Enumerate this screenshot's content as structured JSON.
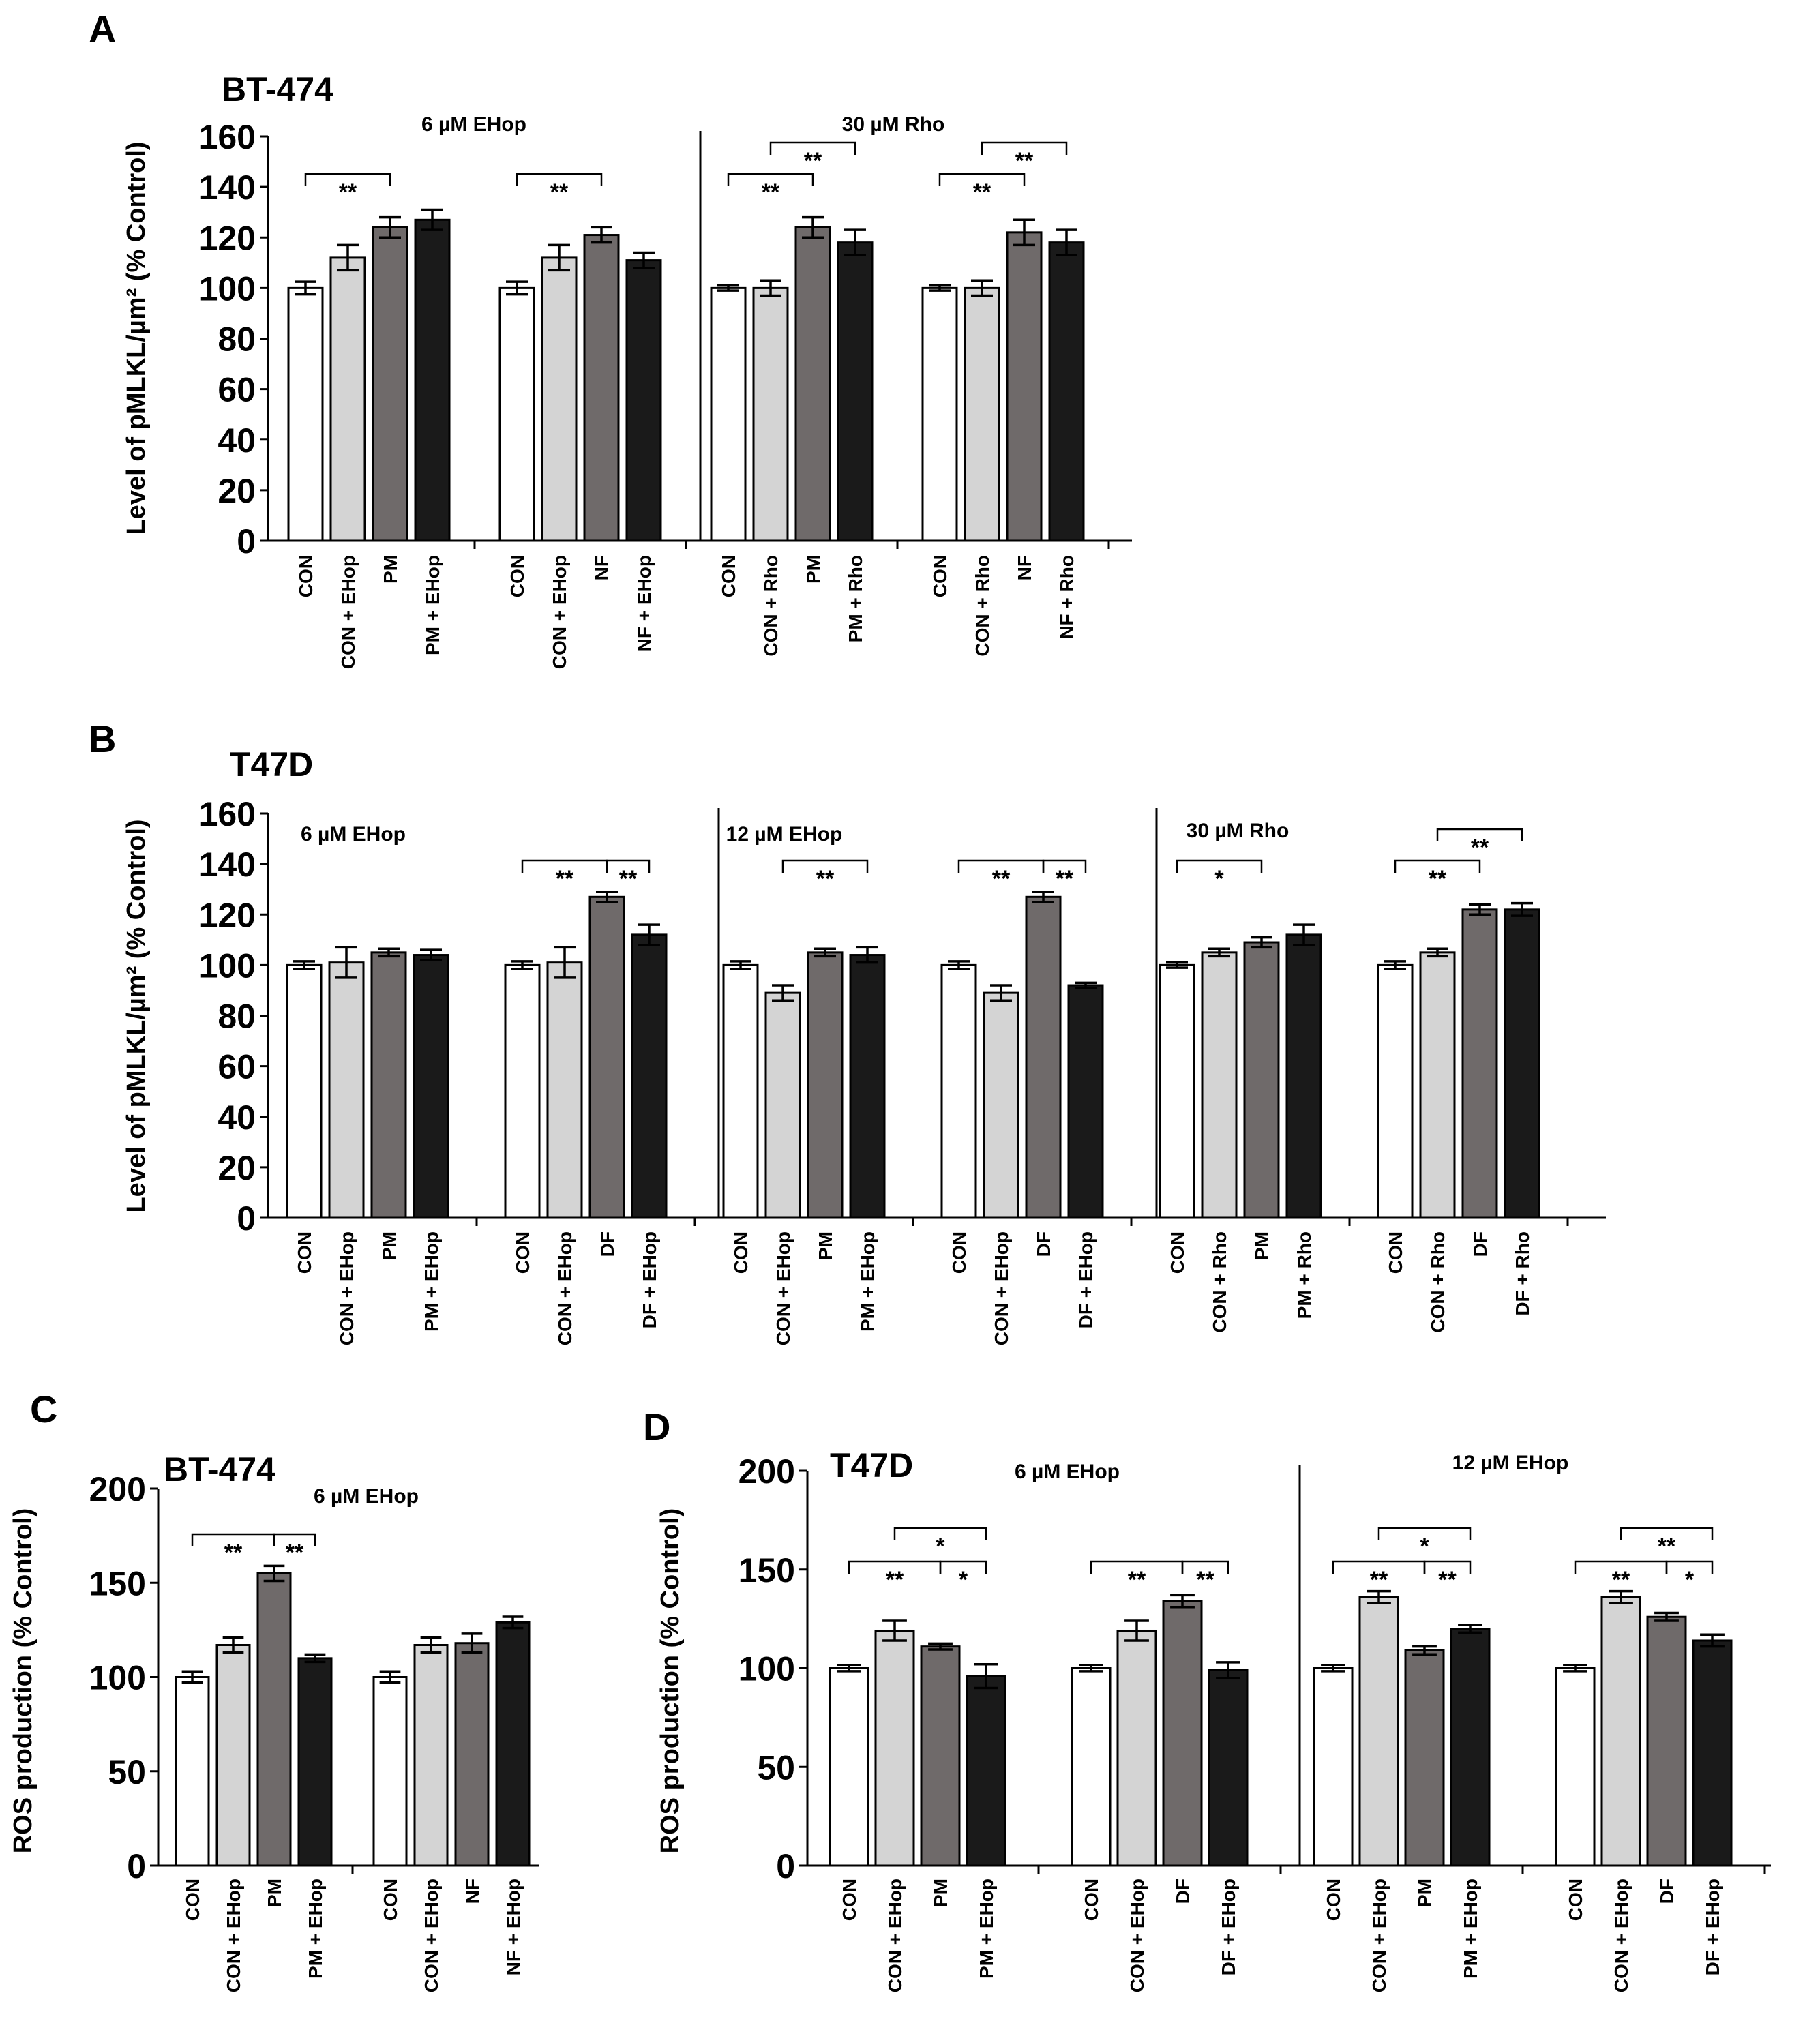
{
  "colors": {
    "bar": [
      "#ffffff",
      "#d4d4d4",
      "#6f6a6a",
      "#1a1a1a"
    ],
    "stroke": "#000000"
  },
  "chart_data": [
    {
      "id": "A",
      "type": "bar",
      "panel_label": "A",
      "title": "BT-474",
      "ylabel": "Level of pMLKL/µm² (% Control)",
      "ylim": [
        0,
        160
      ],
      "yticks": [
        0,
        20,
        40,
        60,
        80,
        100,
        120,
        140,
        160
      ],
      "sections": [
        {
          "label": "6 µM EHop",
          "groups": [
            0,
            1
          ]
        },
        {
          "label": "30 µM Rho",
          "groups": [
            2,
            3
          ]
        }
      ],
      "groups": [
        {
          "bars": [
            {
              "label": "CON",
              "value": 100,
              "err": 2.5
            },
            {
              "label": "CON + EHop",
              "value": 112,
              "err": 5
            },
            {
              "label": "PM",
              "value": 124,
              "err": 4
            },
            {
              "label": "PM + EHop",
              "value": 127,
              "err": 4
            }
          ],
          "sig": [
            {
              "from": 0,
              "to": 2,
              "text": "**",
              "level": 0
            }
          ]
        },
        {
          "bars": [
            {
              "label": "CON",
              "value": 100,
              "err": 2.5
            },
            {
              "label": "CON + EHop",
              "value": 112,
              "err": 5
            },
            {
              "label": "NF",
              "value": 121,
              "err": 3
            },
            {
              "label": "NF + EHop",
              "value": 111,
              "err": 3
            }
          ],
          "sig": [
            {
              "from": 0,
              "to": 2,
              "text": "**",
              "level": 0
            }
          ]
        },
        {
          "bars": [
            {
              "label": "CON",
              "value": 100,
              "err": 1
            },
            {
              "label": "CON + Rho",
              "value": 100,
              "err": 3
            },
            {
              "label": "PM",
              "value": 124,
              "err": 4
            },
            {
              "label": "PM + Rho",
              "value": 118,
              "err": 5
            }
          ],
          "sig": [
            {
              "from": 0,
              "to": 2,
              "text": "**",
              "level": 0
            },
            {
              "from": 1,
              "to": 3,
              "text": "**",
              "level": 1
            }
          ]
        },
        {
          "bars": [
            {
              "label": "CON",
              "value": 100,
              "err": 1
            },
            {
              "label": "CON + Rho",
              "value": 100,
              "err": 3
            },
            {
              "label": "NF",
              "value": 122,
              "err": 5
            },
            {
              "label": "NF + Rho",
              "value": 118,
              "err": 5
            }
          ],
          "sig": [
            {
              "from": 0,
              "to": 2,
              "text": "**",
              "level": 0
            },
            {
              "from": 1,
              "to": 3,
              "text": "**",
              "level": 1
            }
          ]
        }
      ]
    },
    {
      "id": "B",
      "type": "bar",
      "panel_label": "B",
      "title": "T47D",
      "ylabel": "Level of pMLKL/µm² (% Control)",
      "ylim": [
        0,
        160
      ],
      "yticks": [
        0,
        20,
        40,
        60,
        80,
        100,
        120,
        140,
        160
      ],
      "sections": [
        {
          "label": "6 µM EHop",
          "groups": [
            0,
            1
          ]
        },
        {
          "label": "12 µM EHop",
          "groups": [
            2,
            3
          ]
        },
        {
          "label": "30 µM Rho",
          "groups": [
            4,
            5
          ]
        }
      ],
      "groups": [
        {
          "bars": [
            {
              "label": "CON",
              "value": 100,
              "err": 1.5
            },
            {
              "label": "CON + EHop",
              "value": 101,
              "err": 6
            },
            {
              "label": "PM",
              "value": 105,
              "err": 1.5
            },
            {
              "label": "PM + EHop",
              "value": 104,
              "err": 2
            }
          ],
          "sig": []
        },
        {
          "bars": [
            {
              "label": "CON",
              "value": 100,
              "err": 1.5
            },
            {
              "label": "CON + EHop",
              "value": 101,
              "err": 6
            },
            {
              "label": "DF",
              "value": 127,
              "err": 2
            },
            {
              "label": "DF + EHop",
              "value": 112,
              "err": 4
            }
          ],
          "sig": [
            {
              "from": 0,
              "to": 2,
              "text": "**",
              "level": 0
            },
            {
              "from": 2,
              "to": 3,
              "text": "**",
              "level": 0
            }
          ]
        },
        {
          "bars": [
            {
              "label": "CON",
              "value": 100,
              "err": 1.5
            },
            {
              "label": "CON + EHop",
              "value": 89,
              "err": 3
            },
            {
              "label": "PM",
              "value": 105,
              "err": 1.5
            },
            {
              "label": "PM + EHop",
              "value": 104,
              "err": 3
            }
          ],
          "sig": [
            {
              "from": 1,
              "to": 3,
              "text": "**",
              "level": 0
            }
          ]
        },
        {
          "bars": [
            {
              "label": "CON",
              "value": 100,
              "err": 1.5
            },
            {
              "label": "CON + EHop",
              "value": 89,
              "err": 3
            },
            {
              "label": "DF",
              "value": 127,
              "err": 2
            },
            {
              "label": "DF + EHop",
              "value": 92,
              "err": 1
            }
          ],
          "sig": [
            {
              "from": 0,
              "to": 2,
              "text": "**",
              "level": 0
            },
            {
              "from": 2,
              "to": 3,
              "text": "**",
              "level": 0
            }
          ]
        },
        {
          "bars": [
            {
              "label": "CON",
              "value": 100,
              "err": 1
            },
            {
              "label": "CON + Rho",
              "value": 105,
              "err": 1.5
            },
            {
              "label": "PM",
              "value": 109,
              "err": 2
            },
            {
              "label": "PM + Rho",
              "value": 112,
              "err": 4
            }
          ],
          "sig": [
            {
              "from": 0,
              "to": 2,
              "text": "*",
              "level": 0
            }
          ]
        },
        {
          "bars": [
            {
              "label": "CON",
              "value": 100,
              "err": 1.5
            },
            {
              "label": "CON + Rho",
              "value": 105,
              "err": 1.5
            },
            {
              "label": "DF",
              "value": 122,
              "err": 2
            },
            {
              "label": "DF + Rho",
              "value": 122,
              "err": 2.5
            }
          ],
          "sig": [
            {
              "from": 0,
              "to": 2,
              "text": "**",
              "level": 0
            },
            {
              "from": 1,
              "to": 3,
              "text": "**",
              "level": 1
            }
          ]
        }
      ]
    },
    {
      "id": "C",
      "type": "bar",
      "panel_label": "C",
      "title": "BT-474",
      "ylabel": "ROS production (% Control)",
      "ylim": [
        0,
        200
      ],
      "yticks": [
        0,
        50,
        100,
        150,
        200
      ],
      "sections": [
        {
          "label": "6 µM EHop",
          "groups": [
            0,
            1
          ]
        }
      ],
      "groups": [
        {
          "bars": [
            {
              "label": "CON",
              "value": 100,
              "err": 3
            },
            {
              "label": "CON + EHop",
              "value": 117,
              "err": 4
            },
            {
              "label": "PM",
              "value": 155,
              "err": 4
            },
            {
              "label": "PM + EHop",
              "value": 110,
              "err": 2
            }
          ],
          "sig": [
            {
              "from": 0,
              "to": 2,
              "text": "**",
              "level": 0
            },
            {
              "from": 2,
              "to": 3,
              "text": "**",
              "level": 0
            }
          ]
        },
        {
          "bars": [
            {
              "label": "CON",
              "value": 100,
              "err": 3
            },
            {
              "label": "CON + EHop",
              "value": 117,
              "err": 4
            },
            {
              "label": "NF",
              "value": 118,
              "err": 5
            },
            {
              "label": "NF + EHop",
              "value": 129,
              "err": 3
            }
          ],
          "sig": []
        }
      ]
    },
    {
      "id": "D",
      "type": "bar",
      "panel_label": "D",
      "title": "T47D",
      "ylabel": "ROS production (% Control)",
      "ylim": [
        0,
        200
      ],
      "yticks": [
        0,
        50,
        100,
        150,
        200
      ],
      "sections": [
        {
          "label": "6 µM EHop",
          "groups": [
            0,
            1
          ]
        },
        {
          "label": "12 µM EHop",
          "groups": [
            2,
            3
          ]
        }
      ],
      "groups": [
        {
          "bars": [
            {
              "label": "CON",
              "value": 100,
              "err": 1.5
            },
            {
              "label": "CON + EHop",
              "value": 119,
              "err": 5
            },
            {
              "label": "PM",
              "value": 111,
              "err": 1.5
            },
            {
              "label": "PM + EHop",
              "value": 96,
              "err": 6
            }
          ],
          "sig": [
            {
              "from": 0,
              "to": 2,
              "text": "**",
              "level": 0
            },
            {
              "from": 2,
              "to": 3,
              "text": "*",
              "level": 0
            },
            {
              "from": 1,
              "to": 3,
              "text": "*",
              "level": 1
            }
          ]
        },
        {
          "bars": [
            {
              "label": "CON",
              "value": 100,
              "err": 1.5
            },
            {
              "label": "CON + EHop",
              "value": 119,
              "err": 5
            },
            {
              "label": "DF",
              "value": 134,
              "err": 3
            },
            {
              "label": "DF + EHop",
              "value": 99,
              "err": 4
            }
          ],
          "sig": [
            {
              "from": 0,
              "to": 2,
              "text": "**",
              "level": 0
            },
            {
              "from": 2,
              "to": 3,
              "text": "**",
              "level": 0
            }
          ]
        },
        {
          "bars": [
            {
              "label": "CON",
              "value": 100,
              "err": 1.5
            },
            {
              "label": "CON + EHop",
              "value": 136,
              "err": 3
            },
            {
              "label": "PM",
              "value": 109,
              "err": 2
            },
            {
              "label": "PM + EHop",
              "value": 120,
              "err": 2
            }
          ],
          "sig": [
            {
              "from": 0,
              "to": 2,
              "text": "**",
              "level": 0
            },
            {
              "from": 2,
              "to": 3,
              "text": "**",
              "level": 0
            },
            {
              "from": 1,
              "to": 3,
              "text": "*",
              "level": 1
            }
          ]
        },
        {
          "bars": [
            {
              "label": "CON",
              "value": 100,
              "err": 1.5
            },
            {
              "label": "CON + EHop",
              "value": 136,
              "err": 3
            },
            {
              "label": "DF",
              "value": 126,
              "err": 2
            },
            {
              "label": "DF + EHop",
              "value": 114,
              "err": 3
            }
          ],
          "sig": [
            {
              "from": 0,
              "to": 2,
              "text": "**",
              "level": 0
            },
            {
              "from": 2,
              "to": 3,
              "text": "*",
              "level": 0
            },
            {
              "from": 1,
              "to": 3,
              "text": "**",
              "level": 1
            }
          ]
        }
      ]
    }
  ]
}
